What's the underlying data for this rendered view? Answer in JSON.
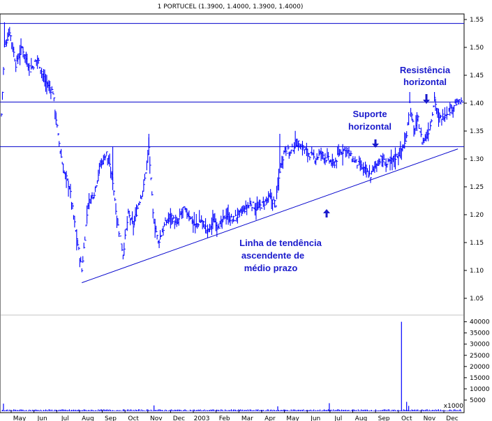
{
  "chart_data": {
    "type": "ohlc",
    "title": "1 PORTUCEL (1.3900, 1.4000, 1.3900, 1.4000)",
    "price_axis": {
      "ticks": [
        "1.55",
        "1.50",
        "1.45",
        "1.40",
        "1.35",
        "1.30",
        "1.25",
        "1.20",
        "1.15",
        "1.10",
        "1.05"
      ],
      "range": [
        1.02,
        1.56
      ]
    },
    "volume_axis": {
      "ticks": [
        "40000",
        "35000",
        "30000",
        "25000",
        "20000",
        "15000",
        "10000",
        "5000"
      ],
      "multiplier_label": "x1000",
      "range": [
        0,
        43000
      ]
    },
    "x_labels": [
      "May",
      "Jun",
      "Jul",
      "Aug",
      "Sep",
      "Oct",
      "Nov",
      "Dec",
      "2003",
      "Feb",
      "Mar",
      "Apr",
      "May",
      "Jun",
      "Jul",
      "Aug",
      "Sep",
      "Oct",
      "Nov",
      "Dec"
    ],
    "horizontal_lines": [
      1.543,
      1.402,
      1.322
    ],
    "trendline": {
      "from_index": 78,
      "from": 1.078,
      "to_index": 440,
      "to": 1.318
    },
    "series_anchors": [
      [
        0,
        1.38
      ],
      [
        3,
        1.5
      ],
      [
        8,
        1.53
      ],
      [
        14,
        1.47
      ],
      [
        20,
        1.5
      ],
      [
        28,
        1.46
      ],
      [
        35,
        1.48
      ],
      [
        42,
        1.44
      ],
      [
        50,
        1.42
      ],
      [
        55,
        1.34
      ],
      [
        60,
        1.28
      ],
      [
        66,
        1.25
      ],
      [
        72,
        1.17
      ],
      [
        78,
        1.1
      ],
      [
        84,
        1.22
      ],
      [
        90,
        1.24
      ],
      [
        96,
        1.29
      ],
      [
        102,
        1.31
      ],
      [
        108,
        1.26
      ],
      [
        113,
        1.18
      ],
      [
        118,
        1.13
      ],
      [
        123,
        1.2
      ],
      [
        128,
        1.18
      ],
      [
        133,
        1.22
      ],
      [
        138,
        1.25
      ],
      [
        143,
        1.32
      ],
      [
        147,
        1.2
      ],
      [
        152,
        1.15
      ],
      [
        158,
        1.18
      ],
      [
        164,
        1.2
      ],
      [
        170,
        1.18
      ],
      [
        176,
        1.21
      ],
      [
        182,
        1.2
      ],
      [
        188,
        1.18
      ],
      [
        194,
        1.19
      ],
      [
        200,
        1.17
      ],
      [
        206,
        1.19
      ],
      [
        212,
        1.18
      ],
      [
        218,
        1.2
      ],
      [
        224,
        1.19
      ],
      [
        230,
        1.2
      ],
      [
        236,
        1.21
      ],
      [
        242,
        1.22
      ],
      [
        248,
        1.21
      ],
      [
        254,
        1.22
      ],
      [
        260,
        1.23
      ],
      [
        266,
        1.22
      ],
      [
        270,
        1.28
      ],
      [
        275,
        1.32
      ],
      [
        280,
        1.31
      ],
      [
        286,
        1.33
      ],
      [
        292,
        1.32
      ],
      [
        298,
        1.31
      ],
      [
        304,
        1.3
      ],
      [
        310,
        1.31
      ],
      [
        316,
        1.3
      ],
      [
        322,
        1.29
      ],
      [
        328,
        1.31
      ],
      [
        334,
        1.32
      ],
      [
        340,
        1.3
      ],
      [
        346,
        1.29
      ],
      [
        352,
        1.28
      ],
      [
        358,
        1.27
      ],
      [
        363,
        1.29
      ],
      [
        368,
        1.3
      ],
      [
        374,
        1.29
      ],
      [
        380,
        1.3
      ],
      [
        386,
        1.31
      ],
      [
        392,
        1.33
      ],
      [
        396,
        1.4
      ],
      [
        400,
        1.35
      ],
      [
        404,
        1.37
      ],
      [
        408,
        1.33
      ],
      [
        412,
        1.34
      ],
      [
        416,
        1.36
      ],
      [
        420,
        1.41
      ],
      [
        424,
        1.37
      ],
      [
        430,
        1.38
      ],
      [
        436,
        1.39
      ],
      [
        440,
        1.4
      ]
    ],
    "volume_spikes": [
      [
        2,
        3400
      ],
      [
        148,
        2600
      ],
      [
        268,
        2200
      ],
      [
        318,
        3600
      ],
      [
        388,
        40000
      ],
      [
        393,
        4200
      ],
      [
        395,
        2400
      ]
    ],
    "annotations": [
      {
        "text": "Resistência",
        "arrow": "down"
      },
      {
        "text": "horizontal",
        "arrow": "none"
      },
      {
        "text": "Suporte",
        "arrow": "none"
      },
      {
        "text": "horizontal",
        "arrow": "down"
      },
      {
        "text": "Linha de tendência",
        "arrow": "up"
      },
      {
        "text": "ascendente de",
        "arrow": "none"
      },
      {
        "text": "médio prazo",
        "arrow": "none"
      }
    ],
    "colors": {
      "bars": "#0000ff",
      "lines": "#0000cc",
      "annotation_text": "#1a1acc",
      "arrows": "#1a1acc"
    }
  }
}
